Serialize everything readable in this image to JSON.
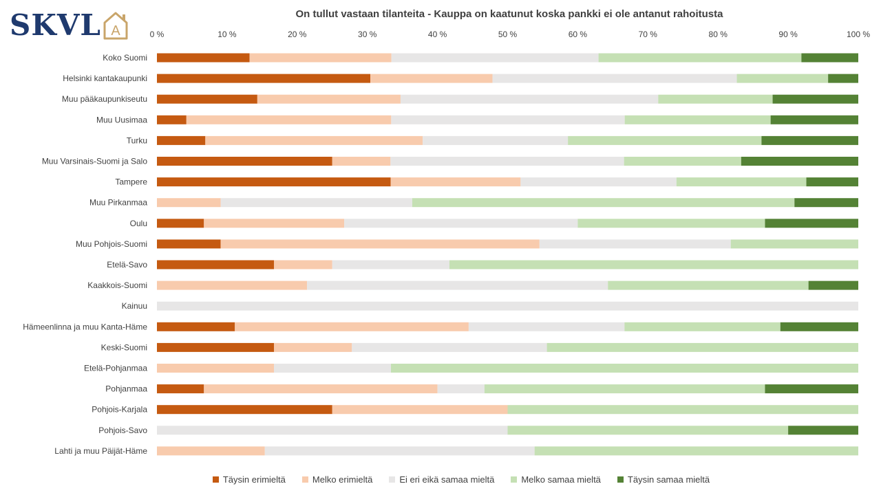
{
  "logo": {
    "text": "SKVL",
    "house_letter": "A"
  },
  "chart_data": {
    "type": "bar",
    "orientation": "horizontal",
    "stacked": "percent",
    "title": "On tullut vastaan tilanteita - Kauppa on kaatunut koska pankki ei ole antanut rahoitusta",
    "xlim": [
      0,
      100
    ],
    "x_ticks": [
      "0 %",
      "10 %",
      "20 %",
      "30 %",
      "40 %",
      "50 %",
      "60 %",
      "70 %",
      "80 %",
      "90 %",
      "100 %"
    ],
    "grid": false,
    "legend_position": "bottom",
    "categories": [
      "Koko Suomi",
      "Helsinki kantakaupunki",
      "Muu pääkaupunkiseutu",
      "Muu Uusimaa",
      "Turku",
      "Muu Varsinais-Suomi ja Salo",
      "Tampere",
      "Muu Pirkanmaa",
      "Oulu",
      "Muu Pohjois-Suomi",
      "Etelä-Savo",
      "Kaakkois-Suomi",
      "Kainuu",
      "Hämeenlinna ja muu Kanta-Häme",
      "Keski-Suomi",
      "Etelä-Pohjanmaa",
      "Pohjanmaa",
      "Pohjois-Karjala",
      "Pohjois-Savo",
      "Lahti ja muu Päijät-Häme"
    ],
    "series": [
      {
        "name": "Täysin erimieltä",
        "color": "#c55a11",
        "values": [
          13.2,
          30.4,
          14.3,
          4.2,
          6.9,
          25.0,
          33.3,
          0,
          6.7,
          9.1,
          16.7,
          0,
          0,
          11.1,
          16.7,
          0,
          6.7,
          25.0,
          0,
          0
        ]
      },
      {
        "name": "Melko erimieltä",
        "color": "#f8cbad",
        "values": [
          20.2,
          17.4,
          20.4,
          29.2,
          31.0,
          8.3,
          18.5,
          9.1,
          20.0,
          45.5,
          8.3,
          21.4,
          0,
          33.3,
          11.1,
          16.7,
          33.3,
          25.0,
          0,
          15.4
        ]
      },
      {
        "name": "Ei eri eikä samaa mieltä",
        "color": "#e7e6e6",
        "values": [
          29.5,
          34.8,
          36.7,
          33.3,
          20.7,
          33.3,
          22.2,
          27.3,
          33.3,
          27.3,
          16.7,
          42.9,
          100,
          22.2,
          27.8,
          16.7,
          6.7,
          0,
          50.0,
          38.5
        ]
      },
      {
        "name": "Melko samaa mieltä",
        "color": "#c5e0b4",
        "values": [
          28.9,
          13.0,
          16.3,
          20.8,
          27.6,
          16.7,
          18.5,
          54.5,
          26.7,
          18.2,
          58.3,
          28.6,
          0,
          22.2,
          44.4,
          66.7,
          40.0,
          50.0,
          40.0,
          46.2
        ]
      },
      {
        "name": "Täysin samaa mieltä",
        "color": "#548235",
        "values": [
          8.1,
          4.3,
          12.2,
          12.5,
          13.8,
          16.7,
          7.4,
          9.1,
          13.3,
          0,
          0,
          7.1,
          0,
          11.1,
          0,
          0,
          13.3,
          0,
          10.0,
          0
        ]
      }
    ]
  }
}
